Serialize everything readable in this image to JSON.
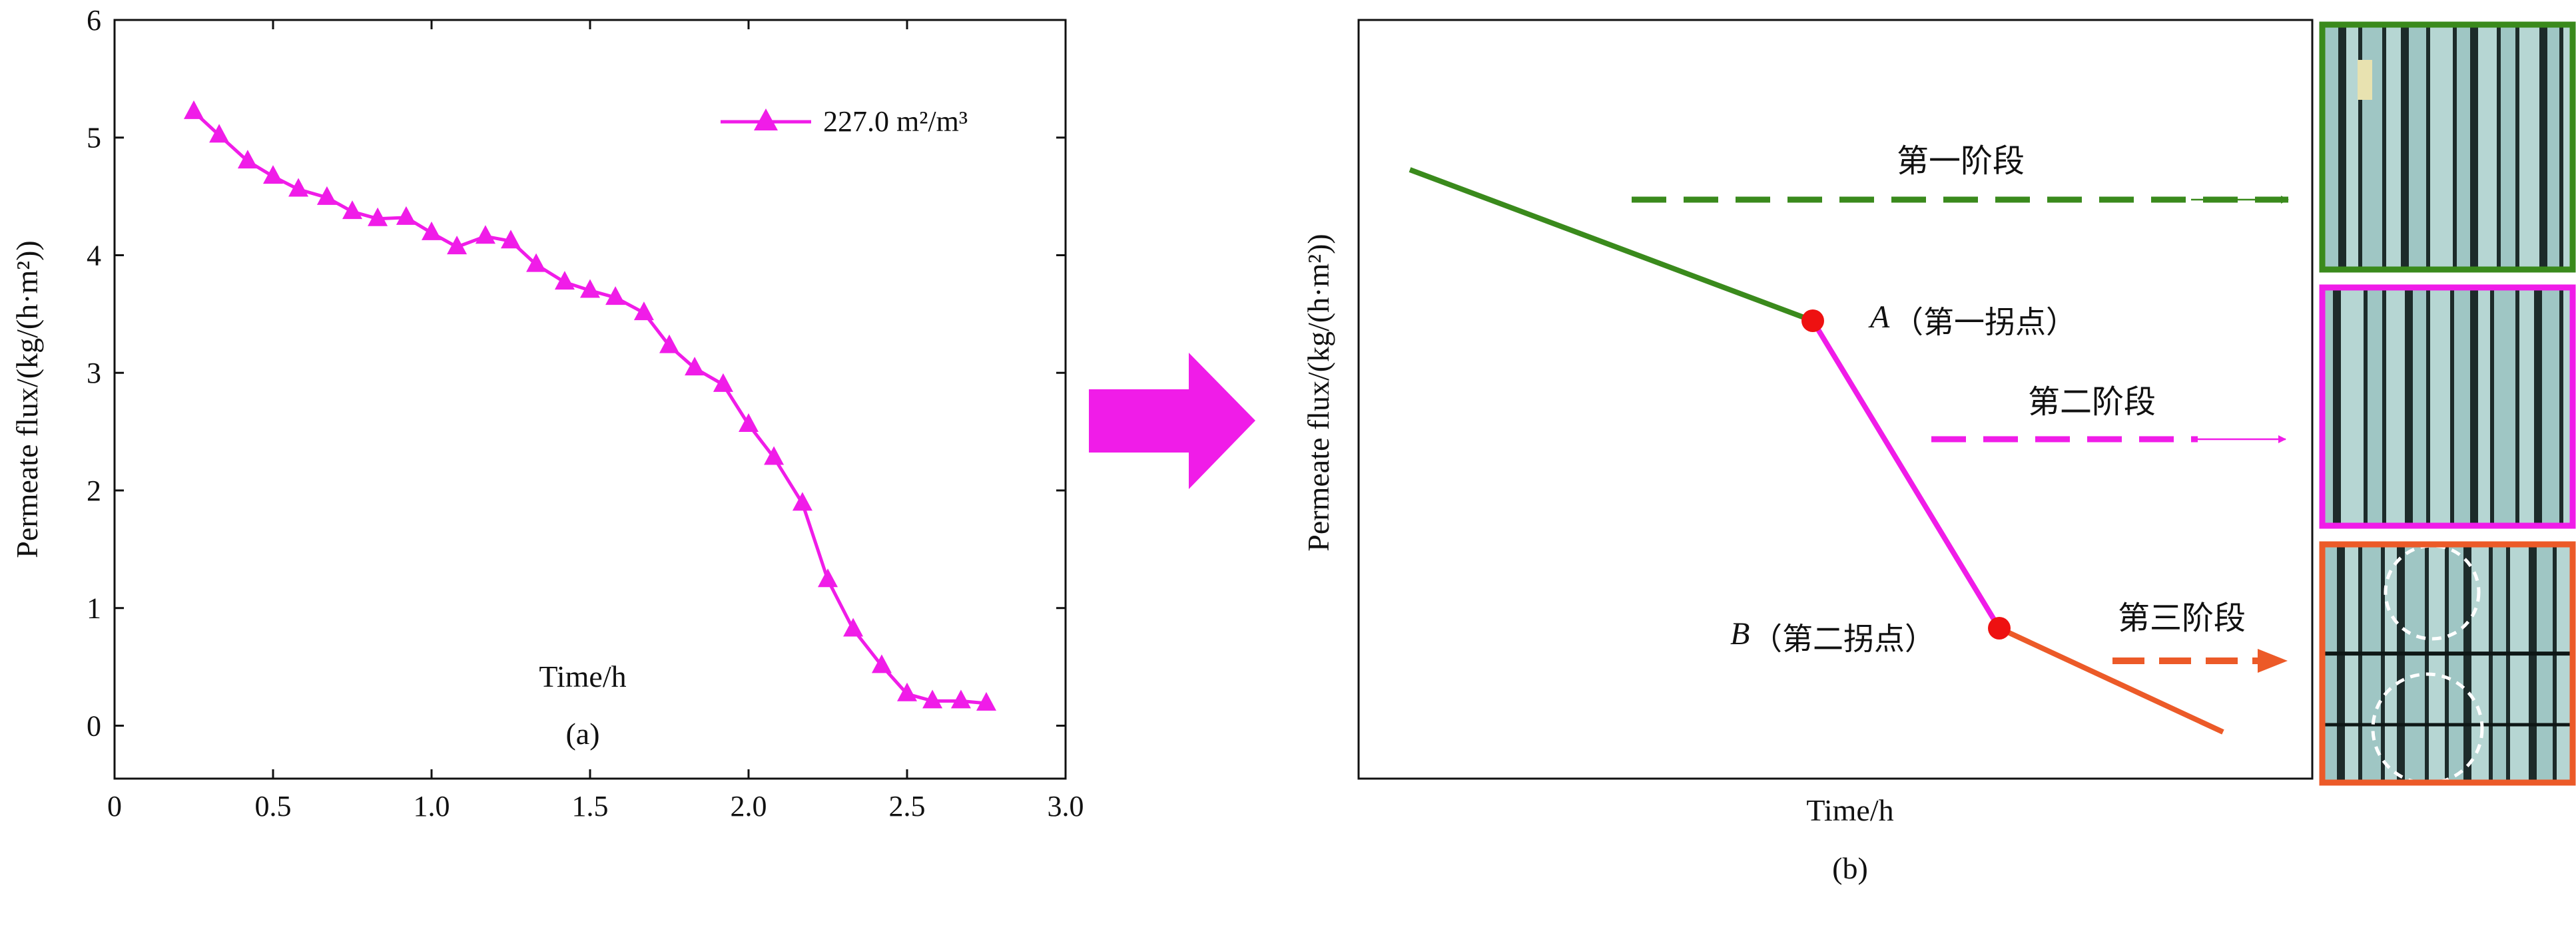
{
  "colors": {
    "series_a": "#f01ce8",
    "stage1": "#3a8a1c",
    "stage2": "#f01ce8",
    "stage3": "#ec5a28",
    "inflection": "#ee1111",
    "arrow_big": "#f01ce8",
    "photo_bg": "#1d2b2a",
    "fiber": "#9fc6c4"
  },
  "chart_data": [
    {
      "type": "line",
      "title": "",
      "xlabel": "Time/h",
      "ylabel": "Permeate flux/(kg/(h·m²))",
      "xlim": [
        0,
        3.0
      ],
      "ylim": [
        -0.45,
        6
      ],
      "x_ticks": [
        "0",
        "0.5",
        "1.0",
        "1.5",
        "2.0",
        "2.5",
        "3.0"
      ],
      "x_tick_values": [
        0,
        0.5,
        1.0,
        1.5,
        2.0,
        2.5,
        3.0
      ],
      "y_ticks": [
        "0",
        "1",
        "2",
        "3",
        "4",
        "5",
        "6"
      ],
      "y_tick_values": [
        0,
        1,
        2,
        3,
        4,
        5,
        6
      ],
      "marker": "triangle",
      "legend_position": "top-right",
      "caption": "(a)",
      "series": [
        {
          "name": "227.0 m²/m³",
          "x": [
            0.25,
            0.33,
            0.42,
            0.5,
            0.58,
            0.67,
            0.75,
            0.83,
            0.92,
            1.0,
            1.08,
            1.17,
            1.25,
            1.33,
            1.42,
            1.5,
            1.58,
            1.67,
            1.75,
            1.83,
            1.92,
            2.0,
            2.08,
            2.17,
            2.25,
            2.33,
            2.42,
            2.5,
            2.58,
            2.67,
            2.75
          ],
          "y": [
            5.22,
            5.02,
            4.8,
            4.67,
            4.56,
            4.49,
            4.37,
            4.31,
            4.32,
            4.19,
            4.07,
            4.16,
            4.12,
            3.92,
            3.77,
            3.7,
            3.64,
            3.51,
            3.23,
            3.04,
            2.9,
            2.56,
            2.28,
            1.89,
            1.24,
            0.82,
            0.51,
            0.27,
            0.21,
            0.21,
            0.19
          ]
        }
      ]
    },
    {
      "type": "line",
      "title": "",
      "xlabel": "Time/h",
      "ylabel": "Permeate flux/(kg/(h·m²))",
      "caption": "(b)",
      "axis_ticks": false,
      "stages": [
        {
          "label": "第一阶段",
          "color": "stage1"
        },
        {
          "label": "第二阶段",
          "color": "stage2"
        },
        {
          "label": "第三阶段",
          "color": "stage3"
        }
      ],
      "inflection_points": [
        {
          "letter": "A",
          "label": "（第一拐点）"
        },
        {
          "letter": "B",
          "label": "（第二拐点）"
        }
      ]
    }
  ]
}
